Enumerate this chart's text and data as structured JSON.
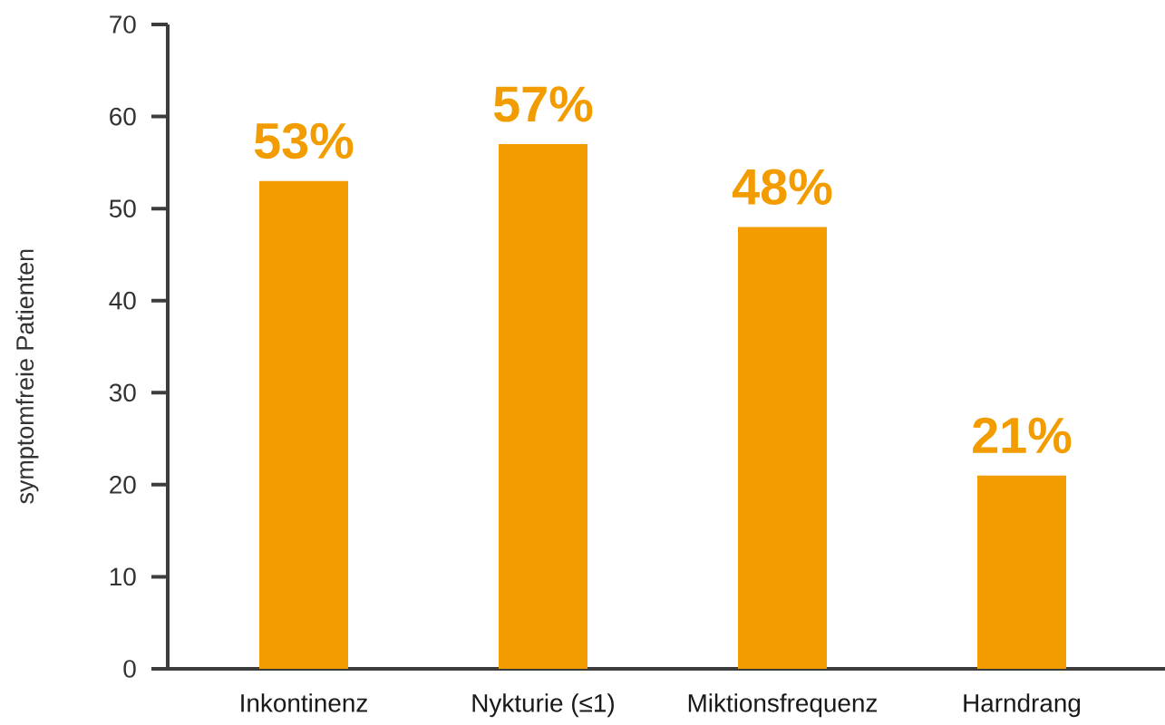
{
  "chart_data": {
    "type": "bar",
    "ylabel": "symptomfreie Patienten",
    "categories": [
      "Inkontinenz",
      "Nykturie (≤1)",
      "Miktionsfrequenz",
      "Harndrang"
    ],
    "values": [
      53,
      57,
      48,
      21
    ],
    "value_labels": [
      "53%",
      "57%",
      "48%",
      "21%"
    ],
    "color": "#f39c00",
    "ylim": [
      0,
      70
    ],
    "yticks": [
      0,
      10,
      20,
      30,
      40,
      50,
      60,
      70
    ]
  }
}
